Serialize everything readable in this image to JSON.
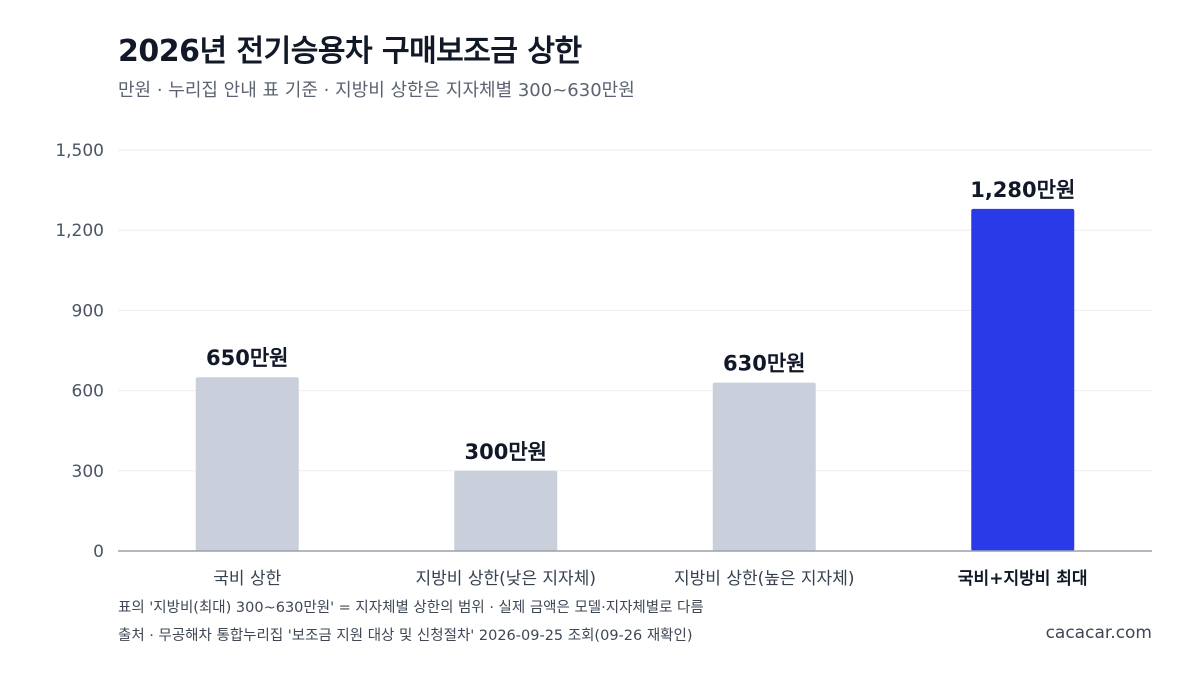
{
  "title": "2026년 전기승용차 구매보조금 상한",
  "subtitle": "만원 · 누리집 안내 표 기준 · 지방비 상한은 지자체별 300~630만원",
  "footnote_1": "표의 '지방비(최대) 300~630만원' = 지자체별 상한의 범위 · 실제 금액은 모델·지자체별로 다름",
  "footnote_2": "출처 · 무공해차 통합누리집 '보조금 지원 대상 및 신청절차' 2026-09-25 조회(09-26 재확인)",
  "brand": "cacacar.com",
  "colors": {
    "bar_default": "#c9d0db",
    "bar_highlight": "#2b3ae8",
    "grid": "#eceef2",
    "axis": "#9aa1ab"
  },
  "chart_data": {
    "type": "bar",
    "categories": [
      "국비 상한",
      "지방비 상한(낮은 지자체)",
      "지방비 상한(높은 지자체)",
      "국비+지방비 최대"
    ],
    "values": [
      650,
      300,
      630,
      1280
    ],
    "value_labels": [
      "650만원",
      "300만원",
      "630만원",
      "1,280만원"
    ],
    "highlight_index": 3,
    "yticks": [
      0,
      300,
      600,
      900,
      1200,
      1500
    ],
    "ytick_labels": [
      "0",
      "300",
      "600",
      "900",
      "1,200",
      "1,500"
    ],
    "ylim": [
      0,
      1500
    ],
    "grid": true,
    "legend": "none"
  }
}
